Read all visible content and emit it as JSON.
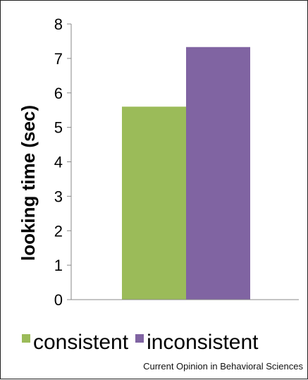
{
  "chart_data": {
    "type": "bar",
    "categories": [
      ""
    ],
    "series": [
      {
        "name": "consistent",
        "values": [
          5.6
        ],
        "color": "#9bbb59"
      },
      {
        "name": "inconsistent",
        "values": [
          7.33
        ],
        "color": "#8064a2"
      }
    ],
    "ylabel": "looking time (sec)",
    "xlabel": "",
    "ylim": [
      0,
      8
    ],
    "yticks": [
      "0",
      "1",
      "2",
      "3",
      "4",
      "5",
      "6",
      "7",
      "8"
    ],
    "grid": false,
    "legend_position": "bottom"
  },
  "source": "Current Opinion in Behavioral Sciences"
}
